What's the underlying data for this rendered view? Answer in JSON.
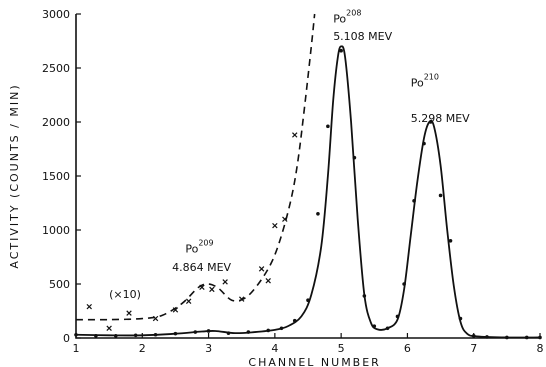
{
  "chart_data": {
    "type": "line",
    "title": "",
    "xlabel": "CHANNEL NUMBER",
    "ylabel": "ACTIVITY (COUNTS / MIN)",
    "xlim": [
      1,
      8
    ],
    "ylim": [
      0,
      3000
    ],
    "x_ticks": [
      1,
      2,
      3,
      4,
      5,
      6,
      7,
      8
    ],
    "y_ticks": [
      0,
      500,
      1000,
      1500,
      2000,
      2500,
      3000
    ],
    "grid": false,
    "series": [
      {
        "style": "solid",
        "marker": "dot",
        "curve": [
          [
            1.0,
            30
          ],
          [
            1.5,
            25
          ],
          [
            2.0,
            25
          ],
          [
            2.5,
            40
          ],
          [
            2.9,
            60
          ],
          [
            3.1,
            65
          ],
          [
            3.4,
            45
          ],
          [
            3.7,
            55
          ],
          [
            4.0,
            75
          ],
          [
            4.2,
            110
          ],
          [
            4.4,
            200
          ],
          [
            4.55,
            400
          ],
          [
            4.7,
            850
          ],
          [
            4.8,
            1500
          ],
          [
            4.88,
            2200
          ],
          [
            4.95,
            2600
          ],
          [
            5.0,
            2700
          ],
          [
            5.06,
            2600
          ],
          [
            5.15,
            2000
          ],
          [
            5.25,
            1100
          ],
          [
            5.35,
            400
          ],
          [
            5.45,
            140
          ],
          [
            5.55,
            80
          ],
          [
            5.7,
            90
          ],
          [
            5.85,
            170
          ],
          [
            5.95,
            450
          ],
          [
            6.05,
            950
          ],
          [
            6.15,
            1450
          ],
          [
            6.25,
            1850
          ],
          [
            6.33,
            2000
          ],
          [
            6.4,
            1960
          ],
          [
            6.5,
            1600
          ],
          [
            6.6,
            1000
          ],
          [
            6.7,
            480
          ],
          [
            6.8,
            150
          ],
          [
            6.9,
            40
          ],
          [
            7.05,
            15
          ],
          [
            7.5,
            5
          ],
          [
            8.0,
            5
          ]
        ],
        "points": [
          [
            1.0,
            30
          ],
          [
            1.3,
            20
          ],
          [
            1.6,
            20
          ],
          [
            1.9,
            25
          ],
          [
            2.2,
            30
          ],
          [
            2.5,
            40
          ],
          [
            2.8,
            55
          ],
          [
            3.0,
            65
          ],
          [
            3.3,
            45
          ],
          [
            3.6,
            55
          ],
          [
            3.9,
            70
          ],
          [
            4.1,
            90
          ],
          [
            4.3,
            160
          ],
          [
            4.5,
            350
          ],
          [
            4.65,
            1150
          ],
          [
            4.8,
            1960
          ],
          [
            5.0,
            2660
          ],
          [
            5.2,
            1670
          ],
          [
            5.35,
            390
          ],
          [
            5.5,
            110
          ],
          [
            5.7,
            90
          ],
          [
            5.85,
            200
          ],
          [
            5.95,
            500
          ],
          [
            6.1,
            1270
          ],
          [
            6.25,
            1800
          ],
          [
            6.35,
            2000
          ],
          [
            6.5,
            1320
          ],
          [
            6.65,
            900
          ],
          [
            6.8,
            180
          ],
          [
            7.0,
            20
          ],
          [
            7.2,
            10
          ],
          [
            7.5,
            5
          ],
          [
            7.8,
            5
          ],
          [
            8.0,
            5
          ]
        ]
      },
      {
        "style": "dashed",
        "marker": "x",
        "curve": [
          [
            1.0,
            170
          ],
          [
            1.5,
            170
          ],
          [
            2.0,
            180
          ],
          [
            2.3,
            210
          ],
          [
            2.6,
            320
          ],
          [
            2.85,
            470
          ],
          [
            3.0,
            500
          ],
          [
            3.15,
            460
          ],
          [
            3.35,
            350
          ],
          [
            3.55,
            370
          ],
          [
            3.75,
            500
          ],
          [
            3.95,
            700
          ],
          [
            4.1,
            950
          ],
          [
            4.25,
            1300
          ],
          [
            4.35,
            1650
          ],
          [
            4.45,
            2150
          ],
          [
            4.55,
            2700
          ],
          [
            4.6,
            3000
          ]
        ],
        "points": [
          [
            1.2,
            290
          ],
          [
            1.5,
            90
          ],
          [
            1.8,
            230
          ],
          [
            2.2,
            180
          ],
          [
            2.5,
            260
          ],
          [
            2.7,
            340
          ],
          [
            2.9,
            470
          ],
          [
            3.05,
            450
          ],
          [
            3.25,
            520
          ],
          [
            3.5,
            360
          ],
          [
            3.8,
            640
          ],
          [
            3.9,
            530
          ],
          [
            4.0,
            1040
          ],
          [
            4.15,
            1100
          ],
          [
            4.3,
            1880
          ]
        ]
      }
    ],
    "annotations": [
      {
        "text": "(×10)",
        "x": 1.5,
        "y": 370
      },
      {
        "text": "Po",
        "sup": "209",
        "x": 2.65,
        "y": 790
      },
      {
        "text": "4.864 MEV",
        "x": 2.45,
        "y": 620
      },
      {
        "text": "Po",
        "sup": "208",
        "x": 4.88,
        "y": 2920
      },
      {
        "text": "5.108 MEV",
        "x": 4.88,
        "y": 2760
      },
      {
        "text": "Po",
        "sup": "210",
        "x": 6.05,
        "y": 2330
      },
      {
        "text": "5.298 MEV",
        "x": 6.05,
        "y": 2000
      }
    ]
  }
}
